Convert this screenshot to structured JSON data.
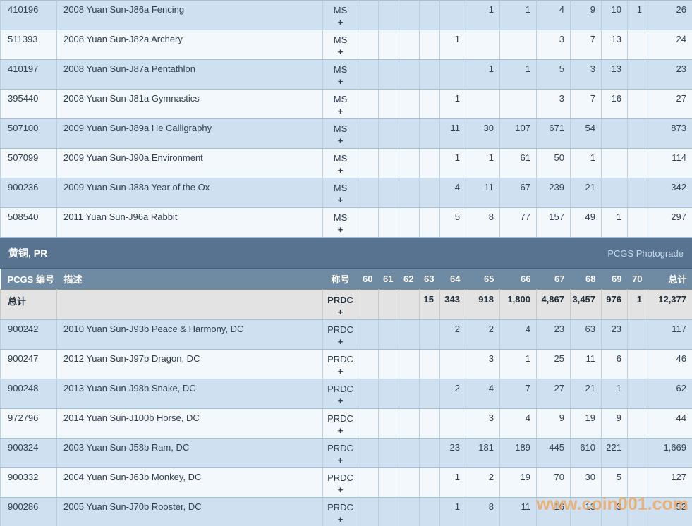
{
  "watermark": "www.coin001.com",
  "section": {
    "title": "黄铜, PR",
    "photograde_label": "PCGS Photograde"
  },
  "columns": [
    "PCGS 编号",
    "描述",
    "称号",
    "60",
    "61",
    "62",
    "63",
    "64",
    "65",
    "66",
    "67",
    "68",
    "69",
    "70",
    "总计"
  ],
  "ms_table": {
    "rows": [
      {
        "pcgs": "410196",
        "description": "2008 Yuan Sun-J86a Fencing",
        "designation": "MS",
        "plus": "+",
        "grades": [
          "",
          "",
          "",
          "",
          "",
          "1",
          "1",
          "4",
          "9",
          "10",
          "1"
        ],
        "total": "26"
      },
      {
        "pcgs": "511393",
        "description": "2008 Yuan Sun-J82a Archery",
        "designation": "MS",
        "plus": "+",
        "grades": [
          "",
          "",
          "",
          "",
          "1",
          "",
          "",
          "3",
          "7",
          "13",
          ""
        ],
        "total": "24"
      },
      {
        "pcgs": "410197",
        "description": "2008 Yuan Sun-J87a Pentathlon",
        "designation": "MS",
        "plus": "+",
        "grades": [
          "",
          "",
          "",
          "",
          "",
          "1",
          "1",
          "5",
          "3",
          "13",
          ""
        ],
        "total": "23"
      },
      {
        "pcgs": "395440",
        "description": "2008 Yuan Sun-J81a Gymnastics",
        "designation": "MS",
        "plus": "+",
        "grades": [
          "",
          "",
          "",
          "",
          "1",
          "",
          "",
          "3",
          "7",
          "16",
          ""
        ],
        "total": "27"
      },
      {
        "pcgs": "507100",
        "description": "2009 Yuan Sun-J89a He Calligraphy",
        "designation": "MS",
        "plus": "+",
        "grades": [
          "",
          "",
          "",
          "",
          "11",
          "30",
          "107",
          "671",
          "54",
          "",
          ""
        ],
        "total": "873"
      },
      {
        "pcgs": "507099",
        "description": "2009 Yuan Sun-J90a Environment",
        "designation": "MS",
        "plus": "+",
        "grades": [
          "",
          "",
          "",
          "",
          "1",
          "1",
          "61",
          "50",
          "1",
          "",
          ""
        ],
        "total": "114"
      },
      {
        "pcgs": "900236",
        "description": "2009 Yuan Sun-J88a Year of the Ox",
        "designation": "MS",
        "plus": "+",
        "grades": [
          "",
          "",
          "",
          "",
          "4",
          "11",
          "67",
          "239",
          "21",
          "",
          ""
        ],
        "total": "342"
      },
      {
        "pcgs": "508540",
        "description": "2011 Yuan Sun-J96a Rabbit",
        "designation": "MS",
        "plus": "+",
        "grades": [
          "",
          "",
          "",
          "",
          "5",
          "8",
          "77",
          "157",
          "49",
          "1",
          ""
        ],
        "total": "297"
      }
    ]
  },
  "pr_table": {
    "totals": {
      "label": "总计",
      "description": "",
      "designation": "PRDC",
      "plus": "+",
      "grades": [
        "",
        "",
        "",
        "15",
        "343",
        "918",
        "1,800",
        "4,867",
        "3,457",
        "976",
        "1"
      ],
      "total": "12,377"
    },
    "rows": [
      {
        "pcgs": "900242",
        "description": "2010 Yuan Sun-J93b Peace & Harmony, DC",
        "designation": "PRDC",
        "plus": "+",
        "grades": [
          "",
          "",
          "",
          "",
          "2",
          "2",
          "4",
          "23",
          "63",
          "23",
          ""
        ],
        "total": "117"
      },
      {
        "pcgs": "900247",
        "description": "2012 Yuan Sun-J97b Dragon, DC",
        "designation": "PRDC",
        "plus": "+",
        "grades": [
          "",
          "",
          "",
          "",
          "",
          "3",
          "1",
          "25",
          "11",
          "6",
          ""
        ],
        "total": "46"
      },
      {
        "pcgs": "900248",
        "description": "2013 Yuan Sun-J98b Snake, DC",
        "designation": "PRDC",
        "plus": "+",
        "grades": [
          "",
          "",
          "",
          "",
          "2",
          "4",
          "7",
          "27",
          "21",
          "1",
          ""
        ],
        "total": "62"
      },
      {
        "pcgs": "972796",
        "description": "2014 Yuan Sun-J100b Horse, DC",
        "designation": "PRDC",
        "plus": "+",
        "grades": [
          "",
          "",
          "",
          "",
          "",
          "3",
          "4",
          "9",
          "19",
          "9",
          ""
        ],
        "total": "44"
      },
      {
        "pcgs": "900324",
        "description": "2003 Yuan Sun-J58b Ram, DC",
        "designation": "PRDC",
        "plus": "+",
        "grades": [
          "",
          "",
          "",
          "",
          "23",
          "181",
          "189",
          "445",
          "610",
          "221",
          ""
        ],
        "total": "1,669"
      },
      {
        "pcgs": "900332",
        "description": "2004 Yuan Sun-J63b Monkey, DC",
        "designation": "PRDC",
        "plus": "+",
        "grades": [
          "",
          "",
          "",
          "",
          "1",
          "2",
          "19",
          "70",
          "30",
          "5",
          ""
        ],
        "total": "127"
      },
      {
        "pcgs": "900286",
        "description": "2005 Yuan Sun-J70b Rooster, DC",
        "designation": "PRDC",
        "plus": "+",
        "grades": [
          "",
          "",
          "",
          "",
          "1",
          "8",
          "11",
          "16",
          "13",
          "3",
          ""
        ],
        "total": "52"
      }
    ]
  }
}
